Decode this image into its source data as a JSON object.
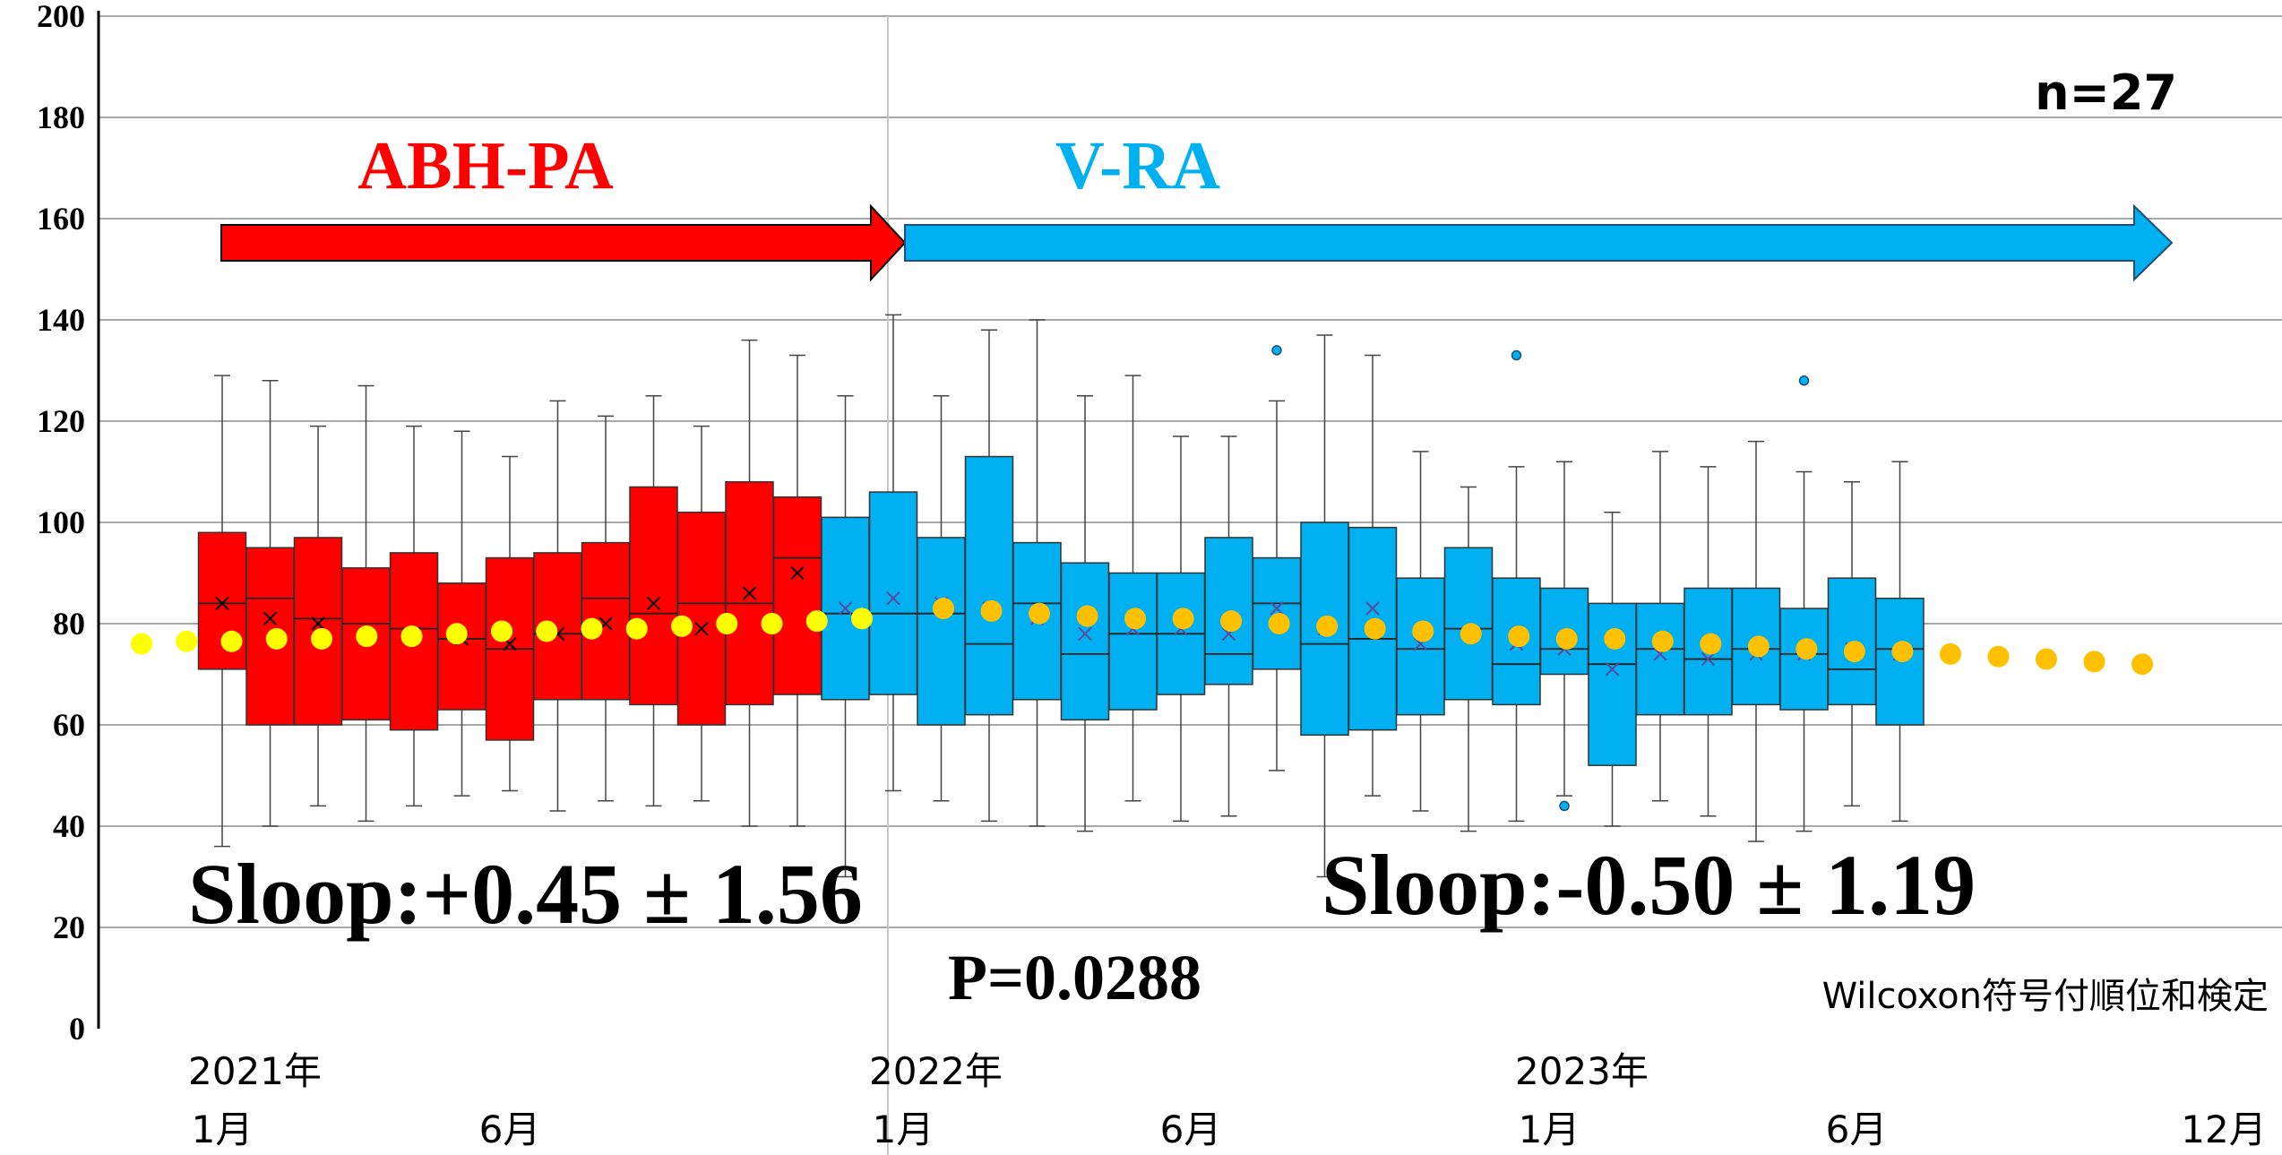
{
  "chart_data": {
    "type": "box",
    "annotations": {
      "n": "n=27",
      "phase1": "ABH-PA",
      "phase2": "V-RA",
      "slope1": "Sloop:+0.45 ± 1.56",
      "slope2": "Sloop:-0.50 ± 1.19",
      "pvalue": "P=0.0288",
      "test": "Wilcoxon符号付順位和検定"
    },
    "y_ticks": [
      "0",
      "20",
      "40",
      "60",
      "80",
      "100",
      "120",
      "140",
      "160",
      "180",
      "200"
    ],
    "ylim": [
      0,
      200
    ],
    "grid": true,
    "x_labels": [
      {
        "line1": "2021年",
        "line2": "1月"
      },
      {
        "line1": "",
        "line2": "6月"
      },
      {
        "line1": "2022年",
        "line2": "1月"
      },
      {
        "line1": "",
        "line2": "6月"
      },
      {
        "line1": "2023年",
        "line2": "1月"
      },
      {
        "line1": "",
        "line2": "6月"
      },
      {
        "line1": "",
        "line2": "12月"
      }
    ],
    "colors": {
      "phase1": "#ff0000",
      "phase2": "#00b0f0",
      "trend_phase1": "#ffff00",
      "trend_phase2": "#ffc000"
    },
    "boxes": [
      {
        "phase": 1,
        "min": 36,
        "q1": 71,
        "median": 84,
        "q3": 98,
        "max": 129,
        "mean": 84
      },
      {
        "phase": 1,
        "min": 40,
        "q1": 60,
        "median": 85,
        "q3": 95,
        "max": 128,
        "mean": 81
      },
      {
        "phase": 1,
        "min": 44,
        "q1": 60,
        "median": 81,
        "q3": 97,
        "max": 119,
        "mean": 80
      },
      {
        "phase": 1,
        "min": 41,
        "q1": 61,
        "median": 80,
        "q3": 91,
        "max": 127,
        "mean": 78
      },
      {
        "phase": 1,
        "min": 44,
        "q1": 59,
        "median": 79,
        "q3": 94,
        "max": 119,
        "mean": 78
      },
      {
        "phase": 1,
        "min": 46,
        "q1": 63,
        "median": 77,
        "q3": 88,
        "max": 118,
        "mean": 77
      },
      {
        "phase": 1,
        "min": 47,
        "q1": 57,
        "median": 75,
        "q3": 93,
        "max": 113,
        "mean": 76
      },
      {
        "phase": 1,
        "min": 43,
        "q1": 65,
        "median": 78,
        "q3": 94,
        "max": 124,
        "mean": 78
      },
      {
        "phase": 1,
        "min": 45,
        "q1": 65,
        "median": 85,
        "q3": 96,
        "max": 121,
        "mean": 80
      },
      {
        "phase": 1,
        "min": 44,
        "q1": 64,
        "median": 82,
        "q3": 107,
        "max": 125,
        "mean": 84
      },
      {
        "phase": 1,
        "min": 45,
        "q1": 60,
        "median": 84,
        "q3": 102,
        "max": 119,
        "mean": 79
      },
      {
        "phase": 1,
        "min": 40,
        "q1": 64,
        "median": 84,
        "q3": 108,
        "max": 136,
        "mean": 86
      },
      {
        "phase": 1,
        "min": 40,
        "q1": 66,
        "median": 93,
        "q3": 105,
        "max": 133,
        "mean": 90
      },
      {
        "phase": 2,
        "min": 30,
        "q1": 65,
        "median": 82,
        "q3": 101,
        "max": 125,
        "mean": 83
      },
      {
        "phase": 2,
        "min": 47,
        "q1": 66,
        "median": 82,
        "q3": 106,
        "max": 141,
        "mean": 85
      },
      {
        "phase": 2,
        "min": 45,
        "q1": 60,
        "median": 82,
        "q3": 97,
        "max": 125,
        "mean": 84
      },
      {
        "phase": 2,
        "min": 41,
        "q1": 62,
        "median": 76,
        "q3": 113,
        "max": 138,
        "mean": 83
      },
      {
        "phase": 2,
        "min": 40,
        "q1": 65,
        "median": 84,
        "q3": 96,
        "max": 140,
        "mean": 81
      },
      {
        "phase": 2,
        "min": 39,
        "q1": 61,
        "median": 74,
        "q3": 92,
        "max": 125,
        "mean": 78
      },
      {
        "phase": 2,
        "min": 45,
        "q1": 63,
        "median": 78,
        "q3": 90,
        "max": 129,
        "mean": 79
      },
      {
        "phase": 2,
        "min": 41,
        "q1": 66,
        "median": 78,
        "q3": 90,
        "max": 117,
        "mean": 79
      },
      {
        "phase": 2,
        "min": 42,
        "q1": 68,
        "median": 74,
        "q3": 97,
        "max": 117,
        "mean": 78
      },
      {
        "phase": 2,
        "min": 51,
        "q1": 71,
        "median": 84,
        "q3": 93,
        "max": 124,
        "mean": 83,
        "outliers": [
          134
        ]
      },
      {
        "phase": 2,
        "min": 30,
        "q1": 58,
        "median": 76,
        "q3": 100,
        "max": 137,
        "mean": 79
      },
      {
        "phase": 2,
        "min": 46,
        "q1": 59,
        "median": 77,
        "q3": 99,
        "max": 133,
        "mean": 83
      },
      {
        "phase": 2,
        "min": 43,
        "q1": 62,
        "median": 75,
        "q3": 89,
        "max": 114,
        "mean": 76
      },
      {
        "phase": 2,
        "min": 39,
        "q1": 65,
        "median": 79,
        "q3": 95,
        "max": 107,
        "mean": 78
      },
      {
        "phase": 2,
        "min": 41,
        "q1": 64,
        "median": 72,
        "q3": 89,
        "max": 111,
        "mean": 76,
        "outliers": [
          133
        ]
      },
      {
        "phase": 2,
        "min": 46,
        "q1": 70,
        "median": 75,
        "q3": 87,
        "max": 112,
        "mean": 75,
        "outliers": [
          44
        ]
      },
      {
        "phase": 2,
        "min": 40,
        "q1": 52,
        "median": 72,
        "q3": 84,
        "max": 102,
        "mean": 71
      },
      {
        "phase": 2,
        "min": 45,
        "q1": 62,
        "median": 75,
        "q3": 84,
        "max": 114,
        "mean": 74
      },
      {
        "phase": 2,
        "min": 42,
        "q1": 62,
        "median": 73,
        "q3": 87,
        "max": 111,
        "mean": 73
      },
      {
        "phase": 2,
        "min": 37,
        "q1": 64,
        "median": 75,
        "q3": 87,
        "max": 116,
        "mean": 74
      },
      {
        "phase": 2,
        "min": 39,
        "q1": 63,
        "median": 74,
        "q3": 83,
        "max": 110,
        "mean": 74,
        "outliers": [
          128
        ]
      },
      {
        "phase": 2,
        "min": 44,
        "q1": 64,
        "median": 71,
        "q3": 89,
        "max": 108,
        "mean": 75
      },
      {
        "phase": 2,
        "min": 41,
        "q1": 60,
        "median": 75,
        "q3": 85,
        "max": 112,
        "mean": 74
      }
    ],
    "trend_points_phase1": [
      76,
      76.5,
      76.5,
      77,
      77,
      77.5,
      77.5,
      78,
      78.5,
      78.5,
      79,
      79,
      79.5,
      80,
      80,
      80.5,
      81
    ],
    "trend_points_phase2": [
      83,
      82.5,
      82,
      81.5,
      81,
      81,
      80.5,
      80,
      79.5,
      79,
      78.5,
      78,
      77.5,
      77,
      77,
      76.5,
      76,
      75.5,
      75,
      74.5,
      74.5,
      74,
      73.5,
      73,
      72.5,
      72
    ]
  }
}
